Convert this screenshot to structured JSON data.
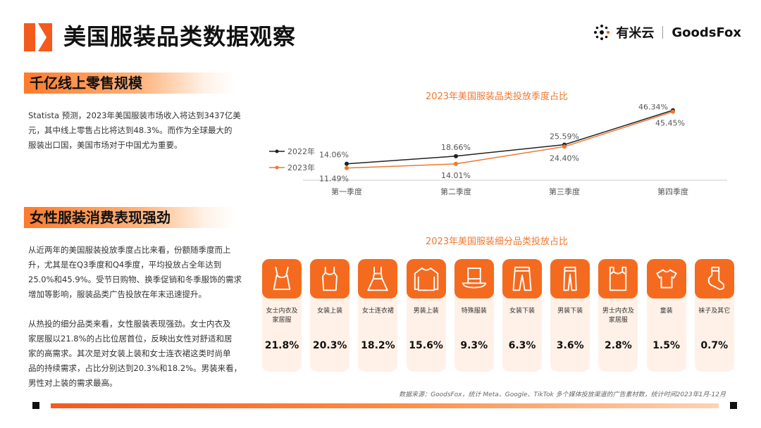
{
  "header": {
    "title": "美国服装品类数据观察",
    "brand_cn": "有米云",
    "brand_en": "GoodsFox"
  },
  "sections": [
    {
      "heading": "千亿线上零售规模",
      "paragraphs": [
        "Statista 预测，2023年美国服装市场收入将达到3437亿美",
        "元，其中线上零售占比将达到48.3%。而作为全球最大的",
        "服装出口国，美国市场对于中国尤为重要。"
      ]
    },
    {
      "heading": "女性服装消费表现强劲",
      "paragraphs": [
        "从近两年的美国服装投放季度占比来看，份额随季度而上",
        "升，尤其是在Q3季度和Q4季度，平均投放占全年达到",
        "25.0%和45.9%。受节日购物、换季促销和冬季服饰的需求",
        "增加等影响，服装品类广告投放在年末迅速提升。",
        "",
        "从热投的细分品类来看，女性服装表现强劲。女士内衣及",
        "家居服以21.8%的占比位居首位，反映出女性对舒适和居",
        "家的高需求。其次是对女装上装和女士连衣裙这类时尚单",
        "品的持续需求，占比分别达到20.3%和18.2%。男装来看，",
        "男性对上装的需求最高。"
      ]
    }
  ],
  "chart_data": [
    {
      "type": "line",
      "title": "2023年美国服装品类投放季度占比",
      "categories": [
        "第一季度",
        "第二季度",
        "第三季度",
        "第四季度"
      ],
      "series": [
        {
          "name": "2022年",
          "values": [
            14.06,
            18.66,
            25.59,
            46.34
          ],
          "labels": [
            "14.06%",
            "18.66%",
            "25.59%",
            "46.34%"
          ],
          "color": "#222222"
        },
        {
          "name": "2023年",
          "values": [
            11.49,
            14.01,
            24.4,
            45.45
          ],
          "labels": [
            "11.49%",
            "14.01%",
            "24.40%",
            "45.45%"
          ],
          "color": "#f07830"
        }
      ],
      "ylim": [
        5,
        50
      ],
      "legend": "left"
    },
    {
      "type": "bar",
      "title": "2023年美国服装细分品类投放占比",
      "categories": [
        {
          "label": "女士内衣及家居服",
          "value": 21.8,
          "display": "21.8%",
          "icon": "camisole-icon"
        },
        {
          "label": "女装上装",
          "value": 20.3,
          "display": "20.3%",
          "icon": "tank-top-icon"
        },
        {
          "label": "女士连衣裙",
          "value": 18.2,
          "display": "18.2%",
          "icon": "dress-icon"
        },
        {
          "label": "男装上装",
          "value": 15.6,
          "display": "15.6%",
          "icon": "sweater-icon"
        },
        {
          "label": "特殊服装",
          "value": 9.3,
          "display": "9.3%",
          "icon": "top-hat-icon"
        },
        {
          "label": "女装下装",
          "value": 6.3,
          "display": "6.3%",
          "icon": "women-pants-icon"
        },
        {
          "label": "男装下装",
          "value": 3.6,
          "display": "3.6%",
          "icon": "men-pants-icon"
        },
        {
          "label": "男士内衣及家居服",
          "value": 2.8,
          "display": "2.8%",
          "icon": "vest-icon"
        },
        {
          "label": "童装",
          "value": 1.5,
          "display": "1.5%",
          "icon": "kids-shirt-icon"
        },
        {
          "label": "袜子及其它",
          "value": 0.7,
          "display": "0.7%",
          "icon": "sock-icon"
        }
      ]
    }
  ],
  "source": "数据来源：GoodsFox，统计 Meta、Google、TikTok 多个媒体投放渠道的广告素材数，统计时间2023年1月-12月",
  "colors": {
    "accent": "#f46b20",
    "card_bg": "#fff1e8",
    "line_2022": "#222222",
    "line_2023": "#f07830"
  }
}
